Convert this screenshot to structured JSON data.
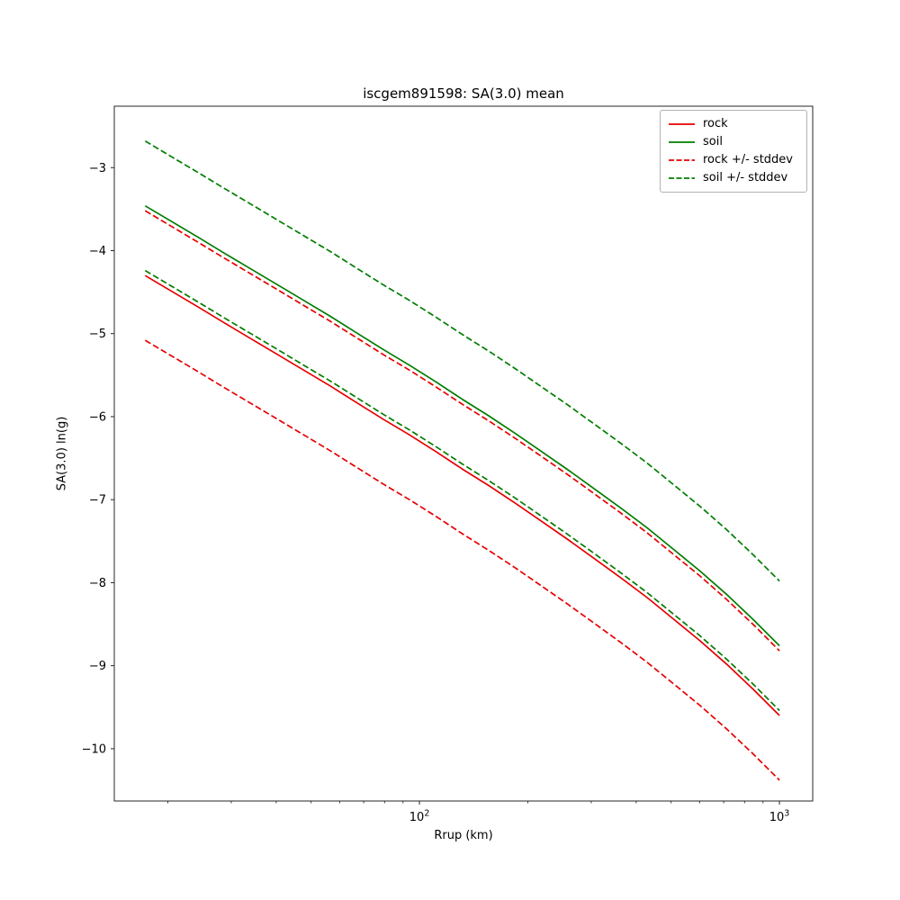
{
  "figure": {
    "title": "iscgem891598: SA(3.0) mean",
    "xlabel": "Rrup (km)",
    "ylabel": "SA(3.0) ln(g)"
  },
  "chart_data": {
    "type": "line",
    "title": "iscgem891598: SA(3.0) mean",
    "xlabel": "Rrup (km)",
    "ylabel": "SA(3.0) ln(g)",
    "xscale": "log",
    "grid": false,
    "legend_position": "upper right",
    "xlim": [
      14.2,
      1237
    ],
    "ylim": [
      -10.63,
      -2.26
    ],
    "yticks": [
      -3,
      -4,
      -5,
      -6,
      -7,
      -8,
      -9,
      -10
    ],
    "xticks": [
      {
        "value": 100,
        "base": "10",
        "exp": "2"
      },
      {
        "value": 1000,
        "base": "10",
        "exp": "3"
      }
    ],
    "xminorticks": [
      20,
      30,
      40,
      50,
      60,
      70,
      80,
      90,
      200,
      300,
      400,
      500,
      600,
      700,
      800,
      900
    ],
    "stddev": 0.78,
    "colors": {
      "rock": "#e60000",
      "soil": "#007d00"
    },
    "x": [
      17.3,
      20.5,
      24.3,
      28.7,
      34.0,
      40.3,
      47.7,
      56.5,
      66.9,
      79.2,
      93.8,
      111.0,
      131.5,
      155.7,
      184.3,
      218.3,
      258.5,
      306.1,
      362.4,
      429.2,
      508.2,
      601.7,
      712.5,
      843.7,
      1000
    ],
    "series": [
      {
        "id": "rock",
        "label": "rock",
        "color": "#e60000",
        "style": "solid",
        "values": [
          -4.3,
          -4.49,
          -4.68,
          -4.87,
          -5.06,
          -5.25,
          -5.44,
          -5.63,
          -5.83,
          -6.03,
          -6.22,
          -6.42,
          -6.63,
          -6.83,
          -7.04,
          -7.26,
          -7.48,
          -7.71,
          -7.94,
          -8.18,
          -8.44,
          -8.7,
          -8.98,
          -9.28,
          -9.6
        ]
      },
      {
        "id": "soil",
        "label": "soil",
        "color": "#007d00",
        "style": "solid",
        "values": [
          -3.46,
          -3.65,
          -3.84,
          -4.03,
          -4.22,
          -4.41,
          -4.6,
          -4.79,
          -4.99,
          -5.19,
          -5.38,
          -5.58,
          -5.79,
          -5.99,
          -6.2,
          -6.42,
          -6.64,
          -6.87,
          -7.1,
          -7.34,
          -7.6,
          -7.86,
          -8.14,
          -8.44,
          -8.76
        ]
      },
      {
        "id": "rock-plus-stddev",
        "label": "rock + stddev",
        "color": "#e60000",
        "style": "dashed",
        "values": [
          -3.52,
          -3.71,
          -3.9,
          -4.09,
          -4.28,
          -4.47,
          -4.66,
          -4.85,
          -5.05,
          -5.25,
          -5.44,
          -5.64,
          -5.85,
          -6.05,
          -6.26,
          -6.48,
          -6.7,
          -6.93,
          -7.16,
          -7.4,
          -7.66,
          -7.92,
          -8.2,
          -8.5,
          -8.82
        ]
      },
      {
        "id": "rock-minus-stddev",
        "label": "rock - stddev",
        "color": "#e60000",
        "style": "dashed",
        "values": [
          -5.08,
          -5.27,
          -5.46,
          -5.65,
          -5.84,
          -6.03,
          -6.22,
          -6.41,
          -6.61,
          -6.81,
          -7.0,
          -7.2,
          -7.41,
          -7.61,
          -7.82,
          -8.04,
          -8.26,
          -8.49,
          -8.72,
          -8.96,
          -9.22,
          -9.48,
          -9.76,
          -10.06,
          -10.38
        ]
      },
      {
        "id": "soil-plus-stddev",
        "label": "soil + stddev",
        "color": "#007d00",
        "style": "dashed",
        "values": [
          -2.68,
          -2.87,
          -3.06,
          -3.25,
          -3.44,
          -3.63,
          -3.82,
          -4.01,
          -4.21,
          -4.41,
          -4.6,
          -4.8,
          -5.01,
          -5.21,
          -5.42,
          -5.64,
          -5.86,
          -6.09,
          -6.32,
          -6.56,
          -6.82,
          -7.08,
          -7.36,
          -7.66,
          -7.98
        ]
      },
      {
        "id": "soil-minus-stddev",
        "label": "soil - stddev",
        "color": "#007d00",
        "style": "dashed",
        "values": [
          -4.24,
          -4.43,
          -4.62,
          -4.81,
          -5.0,
          -5.19,
          -5.38,
          -5.57,
          -5.77,
          -5.97,
          -6.16,
          -6.36,
          -6.57,
          -6.77,
          -6.98,
          -7.2,
          -7.42,
          -7.65,
          -7.88,
          -8.12,
          -8.38,
          -8.64,
          -8.92,
          -9.22,
          -9.54
        ]
      }
    ],
    "legend": {
      "entries": [
        {
          "label": "rock",
          "color": "#e60000",
          "dash": false
        },
        {
          "label": "soil",
          "color": "#007d00",
          "dash": false
        },
        {
          "label": "rock +/- stddev",
          "color": "#e60000",
          "dash": true
        },
        {
          "label": "soil +/- stddev",
          "color": "#007d00",
          "dash": true
        }
      ]
    }
  }
}
